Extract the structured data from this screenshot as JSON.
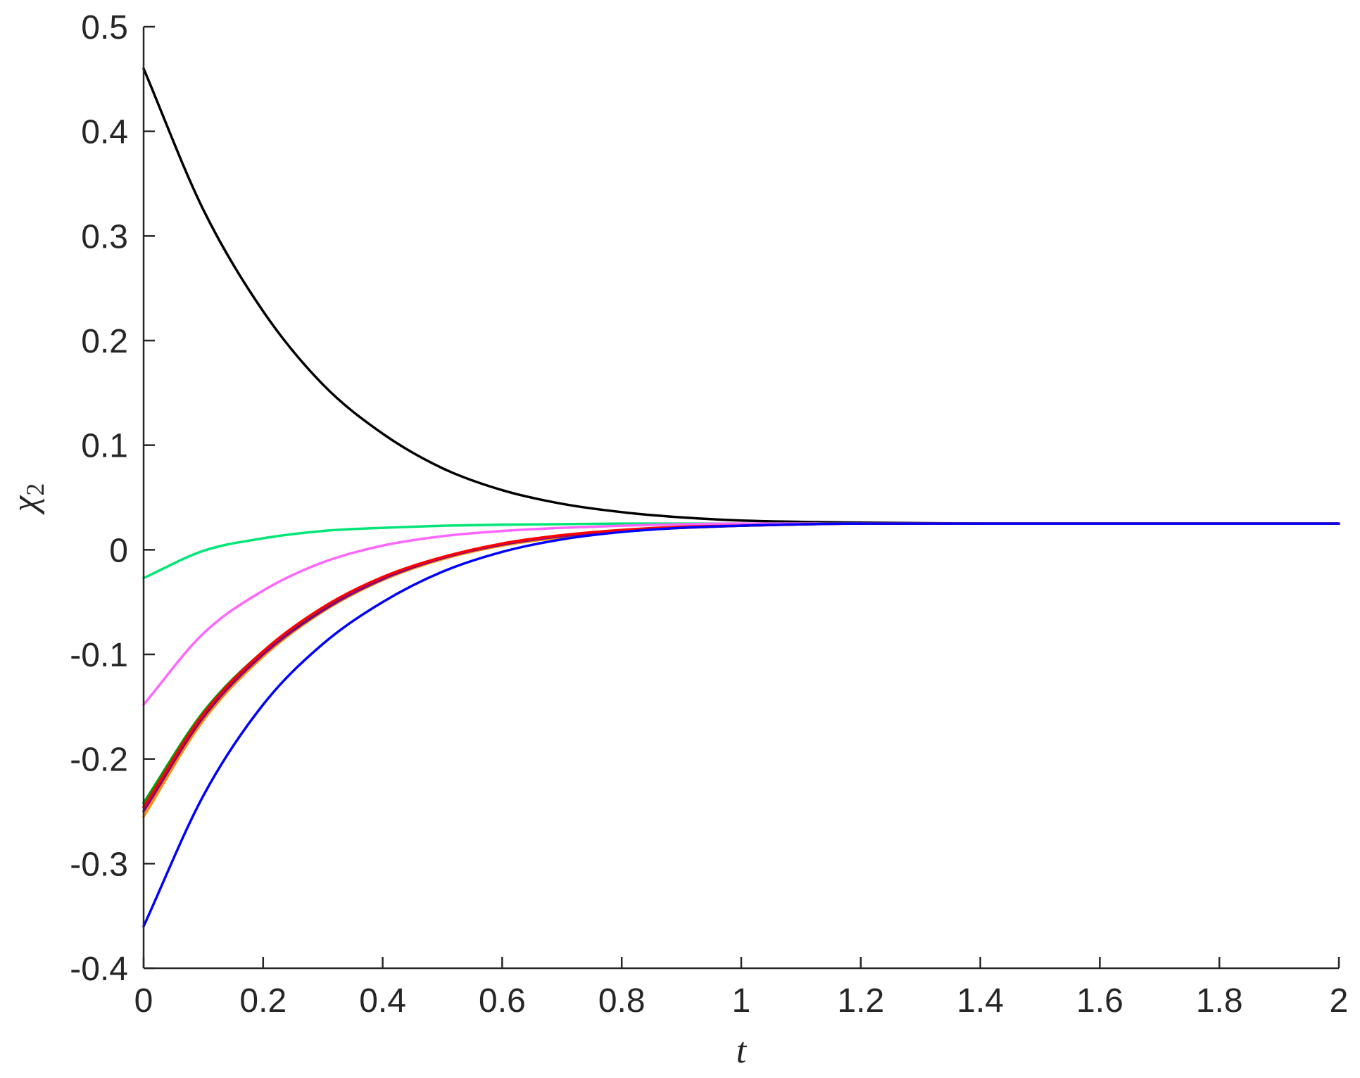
{
  "chart_data": {
    "type": "line",
    "title": "",
    "xlabel": "t",
    "ylabel": "χ",
    "ylabel_subscript": "2",
    "xlim": [
      0,
      2
    ],
    "ylim": [
      -0.4,
      0.5
    ],
    "xticks": [
      0,
      0.2,
      0.4,
      0.6,
      0.8,
      1,
      1.2,
      1.4,
      1.6,
      1.8,
      2
    ],
    "yticks": [
      -0.4,
      -0.3,
      -0.2,
      -0.1,
      0,
      0.1,
      0.2,
      0.3,
      0.4,
      0.5
    ],
    "xtick_labels": [
      "0",
      "0.2",
      "0.4",
      "0.6",
      "0.8",
      "1",
      "1.2",
      "1.4",
      "1.6",
      "1.8",
      "2"
    ],
    "ytick_labels": [
      "-0.4",
      "-0.3",
      "-0.2",
      "-0.1",
      "0",
      "0.1",
      "0.2",
      "0.3",
      "0.4",
      "0.5"
    ],
    "grid": false,
    "legend": "none",
    "series": [
      {
        "color": "#000000",
        "x": [
          0,
          0.1,
          0.2,
          0.3,
          0.4,
          0.5,
          0.6,
          0.7,
          0.8,
          0.9,
          1.0,
          1.2,
          1.4,
          1.6,
          2.0
        ],
        "y": [
          0.46,
          0.325,
          0.228,
          0.158,
          0.111,
          0.078,
          0.057,
          0.044,
          0.036,
          0.031,
          0.028,
          0.026,
          0.025,
          0.025,
          0.025
        ]
      },
      {
        "color": "#00e676",
        "x": [
          0,
          0.1,
          0.2,
          0.3,
          0.4,
          0.5,
          0.6,
          0.8,
          1.0,
          1.4,
          2.0
        ],
        "y": [
          -0.027,
          -0.001,
          0.011,
          0.018,
          0.021,
          0.023,
          0.024,
          0.025,
          0.025,
          0.025,
          0.025
        ]
      },
      {
        "color": "#ff66ff",
        "x": [
          0,
          0.1,
          0.2,
          0.3,
          0.4,
          0.5,
          0.6,
          0.7,
          0.8,
          1.0,
          1.4,
          2.0
        ],
        "y": [
          -0.148,
          -0.08,
          -0.039,
          -0.012,
          0.004,
          0.013,
          0.018,
          0.021,
          0.023,
          0.025,
          0.025,
          0.025
        ]
      },
      {
        "color": "#00a000",
        "x": [
          0,
          0.1,
          0.2,
          0.3,
          0.4,
          0.5,
          0.6,
          0.7,
          0.8,
          0.9,
          1.0,
          1.2,
          1.6,
          2.0
        ],
        "y": [
          -0.242,
          -0.155,
          -0.097,
          -0.056,
          -0.027,
          -0.008,
          0.005,
          0.013,
          0.018,
          0.021,
          0.023,
          0.025,
          0.025,
          0.025
        ]
      },
      {
        "color": "#ff8c00",
        "x": [
          0,
          0.1,
          0.2,
          0.3,
          0.4,
          0.5,
          0.6,
          0.7,
          0.8,
          0.9,
          1.0,
          1.2,
          1.6,
          2.0
        ],
        "y": [
          -0.255,
          -0.163,
          -0.102,
          -0.059,
          -0.029,
          -0.009,
          0.004,
          0.012,
          0.018,
          0.021,
          0.023,
          0.025,
          0.025,
          0.025
        ]
      },
      {
        "color": "#800080",
        "x": [
          0,
          0.1,
          0.2,
          0.3,
          0.4,
          0.5,
          0.6,
          0.7,
          0.8,
          0.9,
          1.0,
          1.2,
          1.6,
          2.0
        ],
        "y": [
          -0.25,
          -0.16,
          -0.1,
          -0.058,
          -0.028,
          -0.008,
          0.005,
          0.013,
          0.018,
          0.021,
          0.023,
          0.025,
          0.025,
          0.025
        ]
      },
      {
        "color": "#ff0000",
        "x": [
          0,
          0.1,
          0.2,
          0.3,
          0.4,
          0.5,
          0.6,
          0.7,
          0.8,
          0.9,
          1.0,
          1.2,
          1.6,
          2.0
        ],
        "y": [
          -0.246,
          -0.157,
          -0.097,
          -0.055,
          -0.026,
          -0.007,
          0.006,
          0.014,
          0.019,
          0.022,
          0.023,
          0.025,
          0.025,
          0.025
        ]
      },
      {
        "color": "#0000ff",
        "x": [
          0,
          0.1,
          0.2,
          0.3,
          0.4,
          0.5,
          0.6,
          0.7,
          0.8,
          0.9,
          1.0,
          1.2,
          1.4,
          2.0
        ],
        "y": [
          -0.36,
          -0.235,
          -0.148,
          -0.09,
          -0.05,
          -0.021,
          -0.002,
          0.01,
          0.017,
          0.021,
          0.023,
          0.025,
          0.025,
          0.025
        ]
      }
    ]
  }
}
